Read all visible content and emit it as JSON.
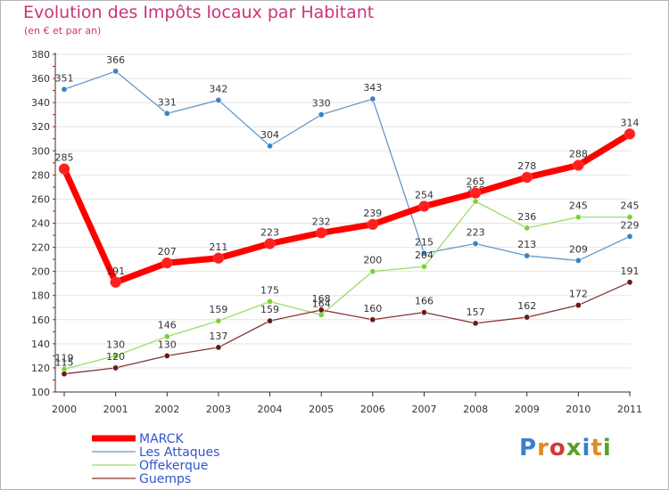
{
  "title": "Evolution des Impôts locaux par Habitant",
  "subtitle": "(en € et par an)",
  "logo_text": "Proxiti",
  "chart_data": {
    "type": "line",
    "title": "Evolution des Impôts locaux par Habitant",
    "subtitle": "(en € et par an)",
    "xlabel": "",
    "ylabel": "",
    "x": [
      "2000",
      "2001",
      "2002",
      "2003",
      "2004",
      "2005",
      "2006",
      "2007",
      "2008",
      "2009",
      "2010",
      "2011"
    ],
    "ylim": [
      100,
      380
    ],
    "yticks": [
      100,
      120,
      140,
      160,
      180,
      200,
      220,
      240,
      260,
      280,
      300,
      320,
      340,
      360,
      380
    ],
    "grid": true,
    "legend_position": "bottom-left",
    "series": [
      {
        "name": "MARCK",
        "color": "#ff0000",
        "marker": "#ff2020",
        "width": 7,
        "values": [
          285,
          191,
          207,
          211,
          223,
          232,
          239,
          254,
          265,
          278,
          288,
          314
        ]
      },
      {
        "name": "Les Attaques",
        "color": "#6699cc",
        "marker": "#3b84c4",
        "width": 1.3,
        "values": [
          351,
          366,
          331,
          342,
          304,
          330,
          343,
          215,
          223,
          213,
          209,
          229
        ]
      },
      {
        "name": "Offekerque",
        "color": "#99dd66",
        "marker": "#7ed236",
        "width": 1.3,
        "values": [
          119,
          130,
          146,
          159,
          175,
          164,
          200,
          204,
          258,
          236,
          245,
          245
        ]
      },
      {
        "name": "Guemps",
        "color": "#883333",
        "marker": "#6a1a1a",
        "width": 1.3,
        "values": [
          115,
          120,
          130,
          137,
          159,
          168,
          160,
          166,
          157,
          162,
          172,
          191
        ]
      }
    ]
  }
}
